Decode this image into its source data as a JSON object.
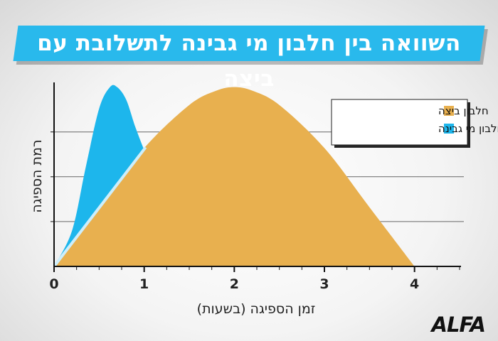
{
  "brand": "ALFA",
  "colors": {
    "banner": "#29b9ec",
    "egg": "#e8b04f",
    "whey": "#1db6ec",
    "axis": "#111111",
    "grid": "#666666"
  },
  "chart_data": {
    "type": "area",
    "title": "השוואה בין חלבון מי גבינה לתשלובת עם ביצה",
    "xlabel": "זמן הספיגה (בשעות)",
    "ylabel": "רמת הספיגה",
    "xlim": [
      0,
      4.5
    ],
    "ylim": [
      0,
      1.05
    ],
    "xticks": [
      0,
      1,
      2,
      3,
      4
    ],
    "xtick_labels": [
      "0",
      "1",
      "2",
      "3",
      "4"
    ],
    "grid": "horizontal",
    "legend_position": "top-right",
    "series": [
      {
        "name": "חלבון ביצה",
        "color": "#e8b04f",
        "x": [
          0,
          0.5,
          1.0,
          1.5,
          1.8,
          2.0,
          2.2,
          2.5,
          3.0,
          3.5,
          4.0
        ],
        "y": [
          0,
          0.33,
          0.66,
          0.9,
          0.98,
          1.0,
          0.98,
          0.9,
          0.66,
          0.33,
          0
        ]
      },
      {
        "name": "חלבון מי גבינה",
        "color": "#1db6ec",
        "x": [
          0,
          0.2,
          0.35,
          0.5,
          0.62,
          0.7,
          0.8,
          0.9,
          1.0,
          1.02
        ],
        "y": [
          0,
          0.2,
          0.55,
          0.88,
          1.0,
          1.0,
          0.93,
          0.78,
          0.65,
          0.64
        ]
      }
    ]
  }
}
